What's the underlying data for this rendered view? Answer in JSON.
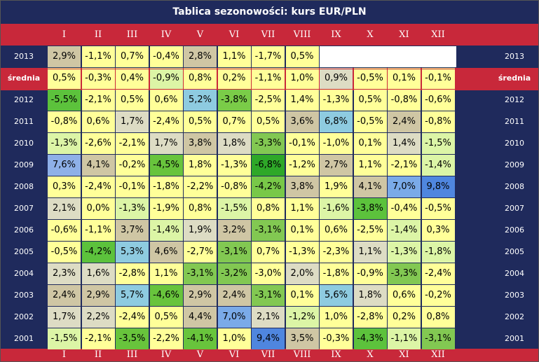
{
  "title": "Tablica sezonowości: kurs EUR/PLN",
  "months": [
    "I",
    "II",
    "III",
    "IV",
    "V",
    "VI",
    "VII",
    "VIII",
    "IX",
    "X",
    "XI",
    "XII"
  ],
  "chart_data": {
    "type": "table",
    "title": "Tablica sezonowości: kurs EUR/PLN",
    "columns": [
      "I",
      "II",
      "III",
      "IV",
      "V",
      "VI",
      "VII",
      "VIII",
      "IX",
      "X",
      "XI",
      "XII"
    ],
    "rows": [
      {
        "label": "2013",
        "values": [
          "2,9%",
          "-1,1%",
          "0,7%",
          "-0,4%",
          "2,8%",
          "1,1%",
          "-1,7%",
          "0,5%",
          "",
          "",
          "",
          ""
        ],
        "colors": [
          "#cfc6a4",
          "#ffff99",
          "#ffff99",
          "#ffff99",
          "#cfc6a4",
          "#ffff99",
          "#ffff99",
          "#ffff99",
          "#ffffff",
          "#ffffff",
          "#ffffff",
          "#ffffff"
        ]
      },
      {
        "label": "średnia",
        "values": [
          "0,5%",
          "-0,3%",
          "0,4%",
          "-0,9%",
          "0,8%",
          "0,2%",
          "-1,1%",
          "1,0%",
          "0,9%",
          "-0,5%",
          "0,1%",
          "-0,1%"
        ],
        "colors": [
          "#ffff99",
          "#ffff99",
          "#ffff99",
          "#dcf5a6",
          "#ffff99",
          "#ffff99",
          "#ffff99",
          "#ffff99",
          "#dddcc4",
          "#ffff99",
          "#ffff99",
          "#ffff99"
        ]
      },
      {
        "label": "2012",
        "values": [
          "-5,5%",
          "-2,1%",
          "0,5%",
          "0,6%",
          "5,2%",
          "-3,8%",
          "-2,5%",
          "1,4%",
          "-1,3%",
          "0,5%",
          "-0,8%",
          "-0,6%"
        ],
        "colors": [
          "#5cc23c",
          "#ffff99",
          "#ffff99",
          "#ffff99",
          "#8ecbe0",
          "#7acc48",
          "#ffff99",
          "#ffff99",
          "#ffff99",
          "#ffff99",
          "#ffff99",
          "#ffff99"
        ]
      },
      {
        "label": "2011",
        "values": [
          "-0,8%",
          "0,6%",
          "1,7%",
          "-2,4%",
          "0,5%",
          "0,7%",
          "0,5%",
          "3,6%",
          "6,8%",
          "-0,5%",
          "2,4%",
          "-0,8%"
        ],
        "colors": [
          "#ffff99",
          "#ffff99",
          "#dddcc4",
          "#ffff99",
          "#ffff99",
          "#ffff99",
          "#ffff99",
          "#cfc6a4",
          "#8ecbe0",
          "#ffff99",
          "#cfc6a4",
          "#ffff99"
        ]
      },
      {
        "label": "2010",
        "values": [
          "-1,3%",
          "-2,6%",
          "-2,1%",
          "1,7%",
          "3,8%",
          "1,8%",
          "-3,3%",
          "-0,1%",
          "-1,0%",
          "0,1%",
          "1,4%",
          "-1,5%"
        ],
        "colors": [
          "#dcf5a6",
          "#ffff99",
          "#ffff99",
          "#dddcc4",
          "#cfc6a4",
          "#dddcc4",
          "#82c852",
          "#ffff99",
          "#ffff99",
          "#ffff99",
          "#dddcc4",
          "#dcf5a6"
        ]
      },
      {
        "label": "2009",
        "values": [
          "7,6%",
          "4,1%",
          "-0,2%",
          "-4,5%",
          "1,8%",
          "-1,3%",
          "-6,8%",
          "-1,2%",
          "2,7%",
          "1,1%",
          "-2,1%",
          "-1,4%"
        ],
        "colors": [
          "#8eb0e8",
          "#cfc6a4",
          "#ffff99",
          "#68c43c",
          "#ffff99",
          "#ffff99",
          "#2ea828",
          "#ffff99",
          "#cfc6a4",
          "#ffff99",
          "#ffff99",
          "#dcf5a6"
        ]
      },
      {
        "label": "2008",
        "values": [
          "0,3%",
          "-2,4%",
          "-0,1%",
          "-1,8%",
          "-2,2%",
          "-0,8%",
          "-4,2%",
          "3,8%",
          "1,9%",
          "4,1%",
          "7,0%",
          "9,8%"
        ],
        "colors": [
          "#ffff99",
          "#ffff99",
          "#ffff99",
          "#ffff99",
          "#ffff99",
          "#ffff99",
          "#78c848",
          "#cfc6a4",
          "#ffff99",
          "#cfc6a4",
          "#7aaae8",
          "#4f86df"
        ]
      },
      {
        "label": "2007",
        "values": [
          "2,1%",
          "0,0%",
          "-1,3%",
          "-1,9%",
          "0,8%",
          "-1,5%",
          "0,8%",
          "1,1%",
          "-1,6%",
          "-3,8%",
          "-0,4%",
          "-0,5%"
        ],
        "colors": [
          "#dddcc4",
          "#ffff99",
          "#dcf5a6",
          "#ffff99",
          "#ffff99",
          "#dcf5a6",
          "#ffff99",
          "#ffff99",
          "#dcf5a6",
          "#5cc23c",
          "#ffff99",
          "#ffff99"
        ]
      },
      {
        "label": "2006",
        "values": [
          "-0,6%",
          "-1,1%",
          "3,7%",
          "-1,4%",
          "1,9%",
          "3,2%",
          "-3,1%",
          "0,1%",
          "0,6%",
          "-2,5%",
          "-1,4%",
          "0,3%"
        ],
        "colors": [
          "#ffff99",
          "#ffff99",
          "#cfc6a4",
          "#dcf5a6",
          "#dddcc4",
          "#cfc6a4",
          "#82c852",
          "#ffff99",
          "#ffff99",
          "#ffff99",
          "#dcf5a6",
          "#ffff99"
        ]
      },
      {
        "label": "2005",
        "values": [
          "-0,5%",
          "-4,2%",
          "5,3%",
          "4,6%",
          "-2,7%",
          "-3,1%",
          "0,7%",
          "-1,3%",
          "-2,3%",
          "1,1%",
          "-1,3%",
          "-1,8%"
        ],
        "colors": [
          "#ffff99",
          "#5cc23c",
          "#8ecbe0",
          "#cfc6a4",
          "#ffff99",
          "#82c852",
          "#ffff99",
          "#ffff99",
          "#ffff99",
          "#dddcc4",
          "#dcf5a6",
          "#dcf5a6"
        ]
      },
      {
        "label": "2004",
        "values": [
          "2,3%",
          "1,6%",
          "-2,8%",
          "1,1%",
          "-3,1%",
          "-3,2%",
          "-3,0%",
          "2,0%",
          "-1,8%",
          "-0,9%",
          "-3,3%",
          "-2,4%"
        ],
        "colors": [
          "#dddcc4",
          "#dddcc4",
          "#ffff99",
          "#ffff99",
          "#82c852",
          "#82c852",
          "#ffff99",
          "#dddcc4",
          "#ffff99",
          "#ffff99",
          "#82c852",
          "#ffff99"
        ]
      },
      {
        "label": "2003",
        "values": [
          "2,4%",
          "2,9%",
          "5,7%",
          "-4,6%",
          "2,9%",
          "2,4%",
          "-3,1%",
          "0,1%",
          "5,6%",
          "1,8%",
          "0,6%",
          "-0,2%"
        ],
        "colors": [
          "#cfc6a4",
          "#cfc6a4",
          "#8ecbe0",
          "#68c43c",
          "#cfc6a4",
          "#cfc6a4",
          "#82c852",
          "#ffff99",
          "#8ecbe0",
          "#dddcc4",
          "#ffff99",
          "#ffff99"
        ]
      },
      {
        "label": "2002",
        "values": [
          "1,7%",
          "2,2%",
          "-2,4%",
          "0,5%",
          "4,4%",
          "7,0%",
          "2,1%",
          "-1,2%",
          "1,0%",
          "-2,8%",
          "0,2%",
          "0,8%"
        ],
        "colors": [
          "#dddcc4",
          "#dddcc4",
          "#ffff99",
          "#ffff99",
          "#cfc6a4",
          "#7aaae8",
          "#dddcc4",
          "#dcf5a6",
          "#ffff99",
          "#ffff99",
          "#ffff99",
          "#ffff99"
        ]
      },
      {
        "label": "2001",
        "values": [
          "-1,5%",
          "-2,1%",
          "-3,5%",
          "-2,2%",
          "-4,1%",
          "1,0%",
          "9,4%",
          "3,5%",
          "-0,3%",
          "-4,3%",
          "-1,1%",
          "-3,1%"
        ],
        "colors": [
          "#dcf5a6",
          "#ffff99",
          "#68c43c",
          "#ffff99",
          "#68c43c",
          "#ffff99",
          "#4f86df",
          "#cfc6a4",
          "#ffff99",
          "#5cc23c",
          "#dcf5a6",
          "#82c852"
        ]
      }
    ]
  },
  "colors": {
    "frame": "#1f2a5c",
    "header": "#c8283a",
    "avg_highlight": "#c8283a",
    "text_light": "#ffffff"
  }
}
